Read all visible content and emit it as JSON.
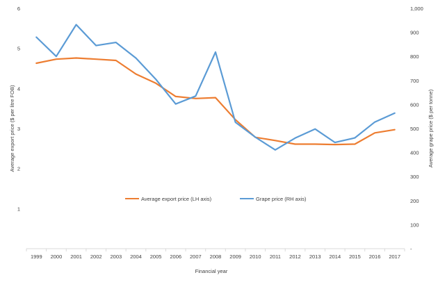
{
  "chart_data": {
    "type": "line",
    "categories": [
      "1999",
      "2000",
      "2001",
      "2002",
      "2003",
      "2004",
      "2005",
      "2006",
      "2007",
      "2008",
      "2009",
      "2010",
      "2011",
      "2012",
      "2013",
      "2014",
      "2015",
      "2016",
      "2017"
    ],
    "xlabel": "Financial year",
    "ylabel_left": "Average export price ($ per litre FOB)",
    "ylabel_right": "Average grape price ($ per tonne)",
    "ylim_left": [
      0,
      6
    ],
    "ylim_right": [
      0,
      1000
    ],
    "yticks_left": [
      "1",
      "2",
      "3",
      "4",
      "5",
      "6"
    ],
    "yticks_right": [
      "-",
      "100",
      "200",
      "300",
      "400",
      "500",
      "600",
      "700",
      "800",
      "900",
      "1,000"
    ],
    "gridlines": false,
    "legend_position": "center",
    "series": [
      {
        "name": "Average export price (LH axis)",
        "axis": "left",
        "color": "#ED7D31",
        "values": [
          4.63,
          4.73,
          4.76,
          4.73,
          4.7,
          4.36,
          4.13,
          3.8,
          3.75,
          3.77,
          3.22,
          2.78,
          2.7,
          2.61,
          2.61,
          2.6,
          2.61,
          2.89,
          2.97
        ]
      },
      {
        "name": "Grape price (RH axis)",
        "axis": "right",
        "color": "#5B9BD5",
        "values": [
          880,
          800,
          932,
          845,
          858,
          793,
          705,
          602,
          635,
          818,
          526,
          464,
          411,
          460,
          498,
          442,
          461,
          527,
          564
        ]
      }
    ]
  }
}
